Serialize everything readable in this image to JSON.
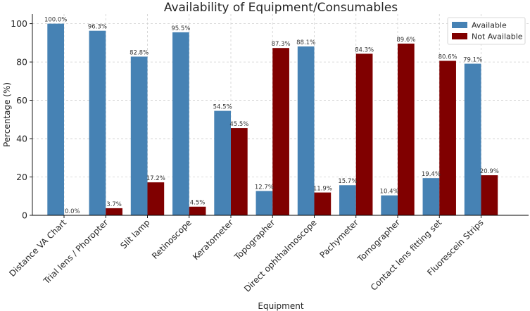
{
  "chart_data": {
    "type": "bar",
    "title": "Availability of Equipment/Consumables",
    "xlabel": "Equipment",
    "ylabel": "Percentage (%)",
    "ylim": [
      0,
      105
    ],
    "yticks": [
      0,
      20,
      40,
      60,
      80,
      100
    ],
    "grid": true,
    "legend_position": "top-right",
    "categories": [
      "Distance VA Chart",
      "Trial lens / Phoropter",
      "Slit lamp",
      "Retinoscope",
      "Keratometer",
      "Topographer",
      "Direct ophthalmoscope",
      "Pachymeter",
      "Tomographer",
      "Contact lens fitting set",
      "Fluorescein Strips"
    ],
    "series": [
      {
        "name": "Available",
        "color": "#4682b4",
        "values": [
          100.0,
          96.3,
          82.8,
          95.5,
          54.5,
          12.7,
          88.1,
          15.7,
          10.4,
          19.4,
          79.1
        ],
        "labels": [
          "100.0%",
          "96.3%",
          "82.8%",
          "95.5%",
          "54.5%",
          "12.7%",
          "88.1%",
          "15.7%",
          "10.4%",
          "19.4%",
          "79.1%"
        ]
      },
      {
        "name": "Not Available",
        "color": "#800000",
        "values": [
          0.0,
          3.7,
          17.2,
          4.5,
          45.5,
          87.3,
          11.9,
          84.3,
          89.6,
          80.6,
          20.9
        ],
        "labels": [
          "0.0%",
          "3.7%",
          "17.2%",
          "4.5%",
          "45.5%",
          "87.3%",
          "11.9%",
          "84.3%",
          "89.6%",
          "80.6%",
          "20.9%"
        ]
      }
    ]
  }
}
